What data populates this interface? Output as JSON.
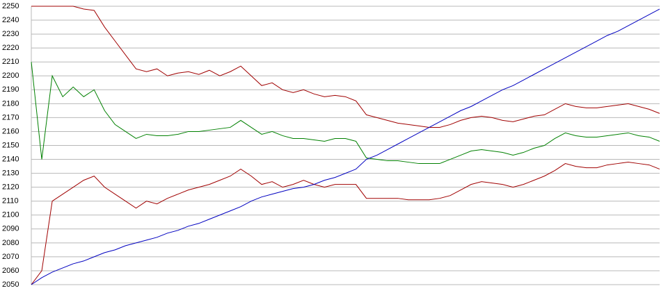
{
  "chart_data": {
    "type": "line",
    "ylim": [
      2050,
      2250
    ],
    "yticks": [
      2050,
      2060,
      2070,
      2080,
      2090,
      2100,
      2110,
      2120,
      2130,
      2140,
      2150,
      2160,
      2170,
      2180,
      2190,
      2200,
      2210,
      2220,
      2230,
      2240,
      2250
    ],
    "grid": true,
    "series": [
      {
        "color": "#a00000",
        "values": [
          2250,
          2250,
          2250,
          2250,
          2250,
          2248,
          2247,
          2235,
          2225,
          2215,
          2205,
          2203,
          2205,
          2200,
          2202,
          2203,
          2201,
          2204,
          2200,
          2203,
          2207,
          2200,
          2193,
          2195,
          2190,
          2188,
          2190,
          2187,
          2185,
          2186,
          2185,
          2182,
          2172,
          2170,
          2168,
          2166,
          2165,
          2164,
          2163,
          2163,
          2165,
          2168,
          2170,
          2171,
          2170,
          2168,
          2167,
          2169,
          2171,
          2172,
          2176,
          2180,
          2178,
          2177,
          2177,
          2178,
          2179,
          2180,
          2178,
          2176,
          2173
        ]
      },
      {
        "color": "#008000",
        "values": [
          2210,
          2140,
          2200,
          2185,
          2192,
          2185,
          2190,
          2175,
          2165,
          2160,
          2155,
          2158,
          2157,
          2157,
          2158,
          2160,
          2160,
          2161,
          2162,
          2163,
          2168,
          2163,
          2158,
          2160,
          2157,
          2155,
          2155,
          2154,
          2153,
          2155,
          2155,
          2153,
          2141,
          2140,
          2139,
          2139,
          2138,
          2137,
          2137,
          2137,
          2140,
          2143,
          2146,
          2147,
          2146,
          2145,
          2143,
          2145,
          2148,
          2150,
          2155,
          2159,
          2157,
          2156,
          2156,
          2157,
          2158,
          2159,
          2157,
          2156,
          2153
        ]
      },
      {
        "color": "#a00000",
        "values": [
          2050,
          2060,
          2110,
          2115,
          2120,
          2125,
          2128,
          2120,
          2115,
          2110,
          2105,
          2110,
          2108,
          2112,
          2115,
          2118,
          2120,
          2122,
          2125,
          2128,
          2133,
          2128,
          2122,
          2124,
          2120,
          2122,
          2125,
          2122,
          2120,
          2122,
          2122,
          2122,
          2112,
          2112,
          2112,
          2112,
          2111,
          2111,
          2111,
          2112,
          2114,
          2118,
          2122,
          2124,
          2123,
          2122,
          2120,
          2122,
          2125,
          2128,
          2132,
          2137,
          2135,
          2134,
          2134,
          2136,
          2137,
          2138,
          2137,
          2136,
          2133
        ]
      },
      {
        "color": "#0000c0",
        "values": [
          2050,
          2055,
          2059,
          2062,
          2065,
          2067,
          2070,
          2073,
          2075,
          2078,
          2080,
          2082,
          2084,
          2087,
          2089,
          2092,
          2094,
          2097,
          2100,
          2103,
          2106,
          2110,
          2113,
          2115,
          2117,
          2119,
          2120,
          2122,
          2125,
          2127,
          2130,
          2133,
          2140,
          2143,
          2147,
          2151,
          2155,
          2159,
          2163,
          2167,
          2171,
          2175,
          2178,
          2182,
          2186,
          2190,
          2193,
          2197,
          2201,
          2205,
          2209,
          2213,
          2217,
          2221,
          2225,
          2229,
          2232,
          2236,
          2240,
          2244,
          2248
        ]
      }
    ]
  }
}
